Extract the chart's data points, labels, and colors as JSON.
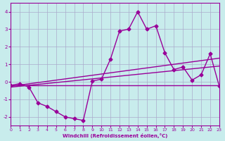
{
  "xlabel": "Windchill (Refroidissement éolien,°C)",
  "xlim": [
    0,
    23
  ],
  "ylim": [
    -2.5,
    4.5
  ],
  "yticks": [
    -2,
    -1,
    0,
    1,
    2,
    3,
    4
  ],
  "xticks": [
    0,
    1,
    2,
    3,
    4,
    5,
    6,
    7,
    8,
    9,
    10,
    11,
    12,
    13,
    14,
    15,
    16,
    17,
    18,
    19,
    20,
    21,
    22,
    23
  ],
  "background_color": "#c8ecec",
  "grid_color": "#aaaacc",
  "line_color": "#990099",
  "series1_x": [
    0,
    1,
    2,
    3,
    4,
    5,
    6,
    7,
    8,
    9,
    10,
    11,
    12,
    13,
    14,
    15,
    16,
    17,
    18,
    19,
    20,
    21,
    22,
    23
  ],
  "series1_y": [
    -0.2,
    -0.1,
    -0.3,
    -1.2,
    -1.4,
    -1.7,
    -2.0,
    -2.1,
    -2.2,
    0.05,
    0.15,
    1.3,
    2.9,
    3.0,
    4.0,
    3.0,
    3.2,
    1.65,
    0.7,
    0.85,
    0.1,
    0.4,
    1.6,
    -0.25
  ],
  "series2_x": [
    0,
    23
  ],
  "series2_y": [
    -0.2,
    -0.2
  ],
  "series3_x": [
    0,
    23
  ],
  "series3_y": [
    -0.3,
    0.9
  ],
  "series4_x": [
    0,
    23
  ],
  "series4_y": [
    -0.25,
    1.35
  ]
}
